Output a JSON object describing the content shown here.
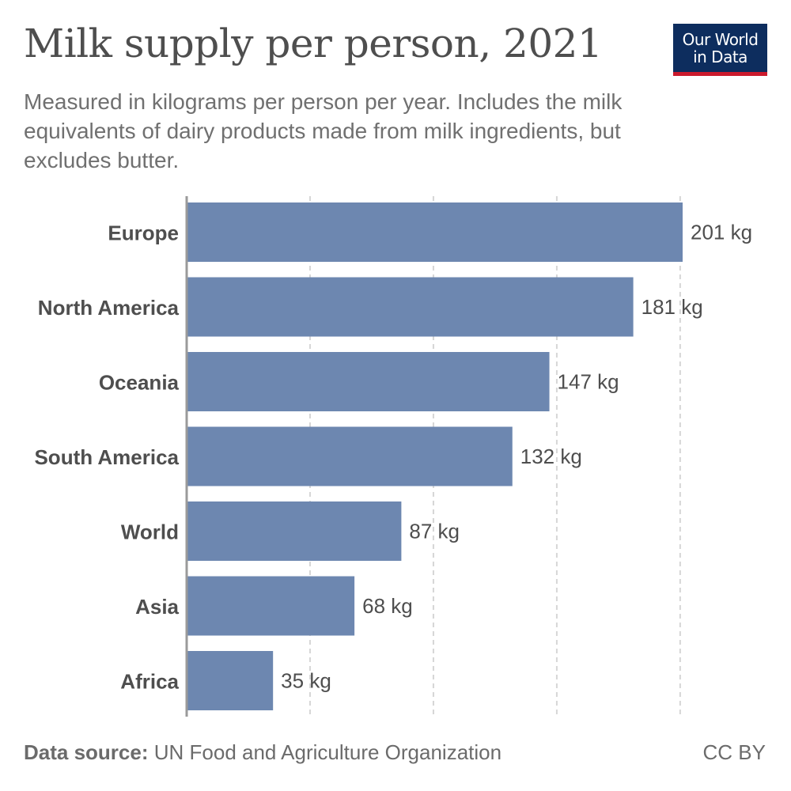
{
  "header": {
    "title": "Milk supply per person, 2021",
    "subtitle": "Measured in kilograms per person per year. Includes the milk equivalents of dairy products made from milk ingredients, but excludes butter."
  },
  "logo": {
    "text": "Our World\nin Data",
    "bg_color": "#0d2d5e",
    "accent_color": "#cb1a2d"
  },
  "chart_data": {
    "type": "bar",
    "orientation": "horizontal",
    "categories": [
      "Europe",
      "North America",
      "Oceania",
      "South America",
      "World",
      "Asia",
      "Africa"
    ],
    "values": [
      201,
      181,
      147,
      132,
      87,
      68,
      35
    ],
    "value_labels": [
      "201 kg",
      "181 kg",
      "147 kg",
      "132 kg",
      "87 kg",
      "68 kg",
      "35 kg"
    ],
    "unit": "kg",
    "xlim": [
      0,
      201
    ],
    "gridlines": [
      50,
      100,
      150,
      200
    ],
    "grid": true,
    "bar_color": "#6d87b0"
  },
  "footer": {
    "source_label": "Data source:",
    "source_text": "UN Food and Agriculture Organization",
    "license": "CC BY"
  }
}
